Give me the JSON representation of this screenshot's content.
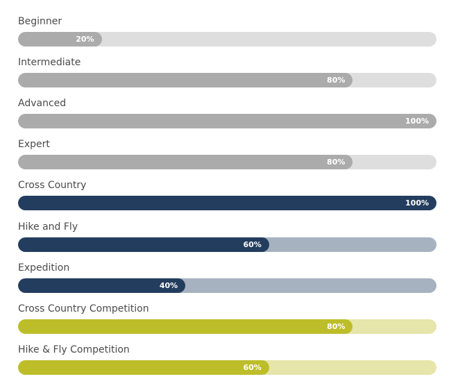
{
  "skills": [
    {
      "label": "Beginner",
      "value_label": "20%",
      "percent": 20,
      "fill_color": "#ababab",
      "track_color": "#dedede"
    },
    {
      "label": "Intermediate",
      "value_label": "80%",
      "percent": 80,
      "fill_color": "#ababab",
      "track_color": "#dedede"
    },
    {
      "label": "Advanced",
      "value_label": "100%",
      "percent": 100,
      "fill_color": "#ababab",
      "track_color": "#dedede"
    },
    {
      "label": "Expert",
      "value_label": "80%",
      "percent": 80,
      "fill_color": "#ababab",
      "track_color": "#dedede"
    },
    {
      "label": "Cross Country",
      "value_label": "100%",
      "percent": 100,
      "fill_color": "#233d5e",
      "track_color": "#a7b2c1"
    },
    {
      "label": "Hike and Fly",
      "value_label": "60%",
      "percent": 60,
      "fill_color": "#233d5e",
      "track_color": "#a7b2c1"
    },
    {
      "label": "Expedition",
      "value_label": "40%",
      "percent": 40,
      "fill_color": "#233d5e",
      "track_color": "#a7b2c1"
    },
    {
      "label": "Cross Country Competition",
      "value_label": "80%",
      "percent": 80,
      "fill_color": "#bdbd2a",
      "track_color": "#e6e5aa"
    },
    {
      "label": "Hike & Fly Competition",
      "value_label": "60%",
      "percent": 60,
      "fill_color": "#bdbd2a",
      "track_color": "#e6e5aa"
    }
  ]
}
